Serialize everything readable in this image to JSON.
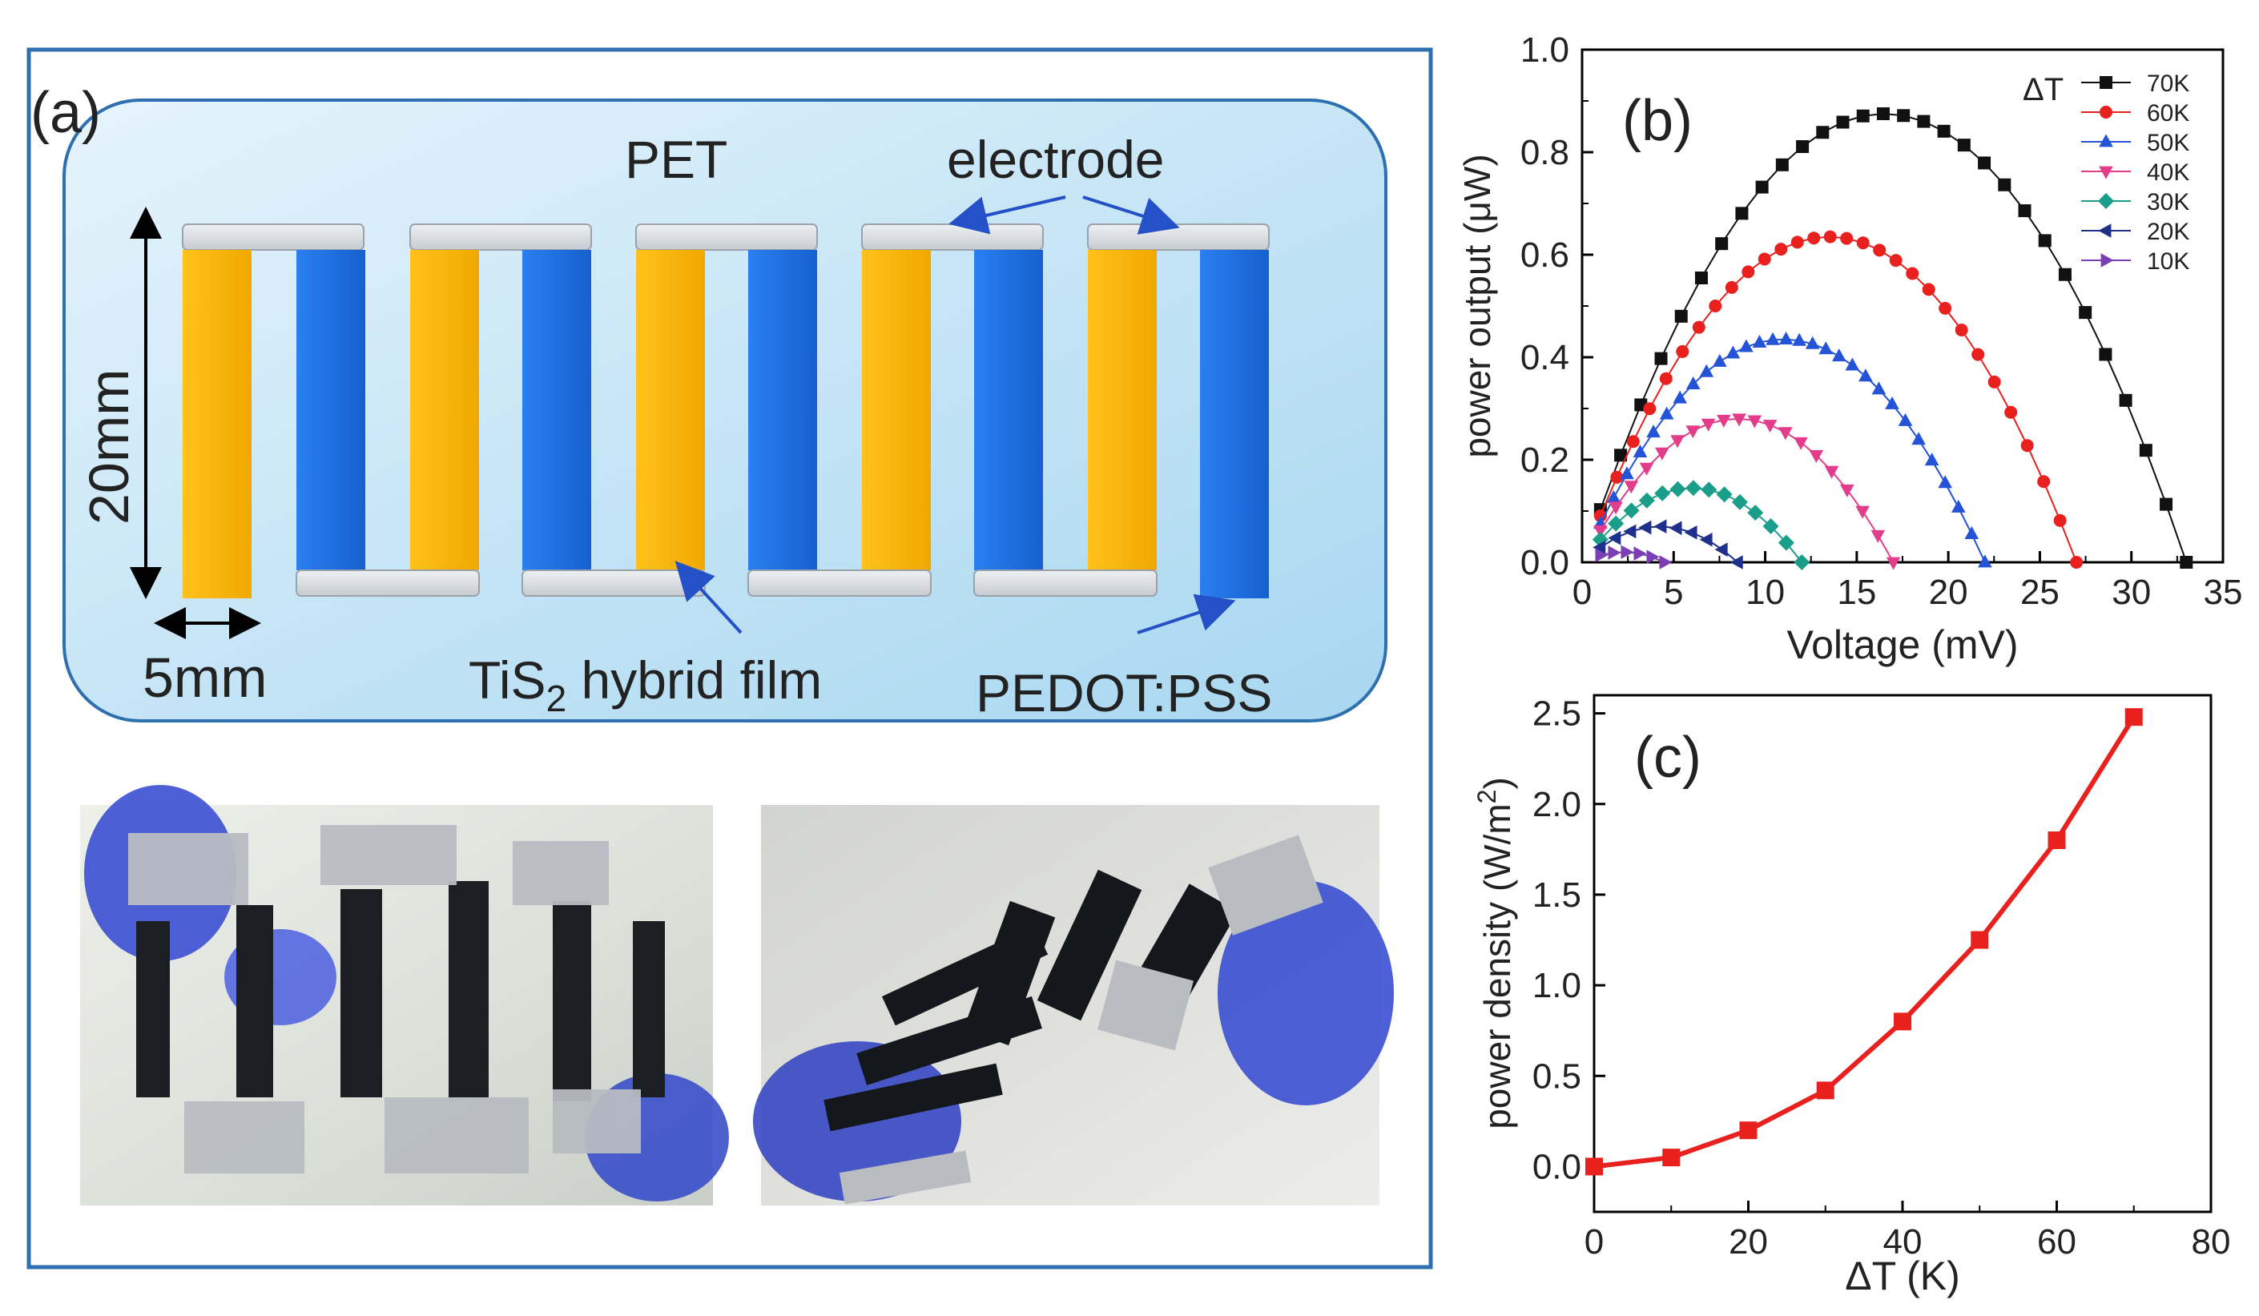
{
  "panel_a": {
    "label": "(a)",
    "substrate_label": "PET",
    "electrode_label": "electrode",
    "height_label": "20mm",
    "width_label": "5mm",
    "tis2_label_main": "TiS",
    "tis2_label_sub": "2",
    "tis2_label_rest": " hybrid film",
    "pedot_label": "PEDOT:PSS",
    "photo_left": "flexible-device-photo-bent",
    "photo_right": "flexible-device-photo-held",
    "colors": {
      "frame": "#2e6fb0",
      "substrate": "#c9e6f7",
      "tis2": "#f7b500",
      "pedot": "#1f6fe0",
      "electrode": "#d7dbe0"
    }
  },
  "chart_data": [
    {
      "type": "scatter",
      "panel_label": "(b)",
      "title": "",
      "xlabel": "Voltage (mV)",
      "ylabel": "power output (μW)",
      "xlim": [
        0,
        35
      ],
      "ylim": [
        0,
        1.0
      ],
      "xticks": [
        "0",
        "5",
        "10",
        "15",
        "20",
        "25",
        "30",
        "35"
      ],
      "yticks": [
        "0.0",
        "0.2",
        "0.4",
        "0.6",
        "0.8",
        "1.0"
      ],
      "legend_title": "ΔT",
      "legend_position": "top-right",
      "series": [
        {
          "name": "70K",
          "color": "#111111",
          "marker": "square",
          "points": 30,
          "v_max": 33.0,
          "p_max": 0.875
        },
        {
          "name": "60K",
          "color": "#e8211f",
          "marker": "circle",
          "points": 30,
          "v_max": 27.0,
          "p_max": 0.635
        },
        {
          "name": "50K",
          "color": "#2453d8",
          "marker": "triangle-up",
          "points": 30,
          "v_max": 22.0,
          "p_max": 0.435
        },
        {
          "name": "40K",
          "color": "#e23c8a",
          "marker": "triangle-down",
          "points": 20,
          "v_max": 17.0,
          "p_max": 0.28
        },
        {
          "name": "30K",
          "color": "#1a9e8a",
          "marker": "diamond",
          "points": 14,
          "v_max": 12.0,
          "p_max": 0.145
        },
        {
          "name": "20K",
          "color": "#1e2f8c",
          "marker": "triangle-left",
          "points": 10,
          "v_max": 8.5,
          "p_max": 0.07
        },
        {
          "name": "10K",
          "color": "#7a3fb2",
          "marker": "triangle-right",
          "points": 6,
          "v_max": 4.5,
          "p_max": 0.02
        }
      ]
    },
    {
      "type": "line",
      "panel_label": "(c)",
      "title": "",
      "xlabel": "ΔT (K)",
      "ylabel_main": "power density (W/m",
      "ylabel_sup": "2",
      "ylabel_end": ")",
      "xlim": [
        0,
        80
      ],
      "ylim": [
        -0.25,
        2.6
      ],
      "xticks": [
        "0",
        "20",
        "40",
        "60",
        "80"
      ],
      "yticks": [
        "0.0",
        "0.5",
        "1.0",
        "1.5",
        "2.0",
        "2.5"
      ],
      "color": "#e8211f",
      "x": [
        0,
        10,
        20,
        30,
        40,
        50,
        60,
        70
      ],
      "values": [
        0.0,
        0.05,
        0.2,
        0.42,
        0.8,
        1.25,
        1.8,
        2.48
      ]
    }
  ]
}
